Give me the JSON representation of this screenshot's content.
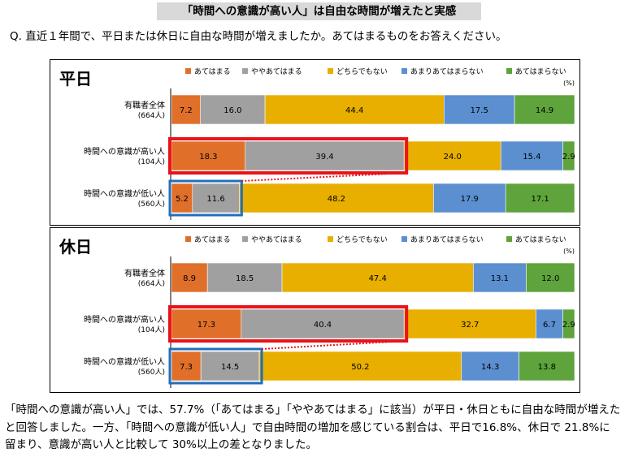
{
  "title": "「時間への意識が高い人」は自由な時間が増えたと実感",
  "question": "Q. 直近１年間で、平日または休日に自由な時間が増えましたか。あてはまるものをお答えください。",
  "footer": "「時間への意識が高い人」では、57.7%（「あてはまる」「ややあてはまる」に該当）が平日・休日ともに自由な時間が増えたと回答しました。一方、「時間への意識が低い人」で自由時間の増加を感じている割合は、平日で16.8%、休日で 21.8%に留まり、意識が高い人と比較して 30%以上の差となりました。",
  "colors": {
    "series": [
      "#e06f2a",
      "#a0a0a0",
      "#e8ae00",
      "#5b8fcf",
      "#5ea33b"
    ],
    "highlight_high": "#e8131a",
    "highlight_low": "#1f6fbd"
  },
  "chart_data": [
    {
      "type": "bar",
      "stacked": true,
      "orientation": "horizontal",
      "title": "平日",
      "unit": "(%)",
      "series_names": [
        "あてはまる",
        "ややあてはまる",
        "どちらでもない",
        "あまりあてはまらない",
        "あてはまらない"
      ],
      "categories": [
        {
          "label": "有職者全体",
          "n": "(664人)"
        },
        {
          "label": "時間への意識が高い人",
          "n": "(104人)"
        },
        {
          "label": "時間への意識が低い人",
          "n": "(560人)"
        }
      ],
      "values": [
        [
          7.2,
          16.0,
          44.4,
          17.5,
          14.9
        ],
        [
          18.3,
          39.4,
          24.0,
          15.4,
          2.9
        ],
        [
          5.2,
          11.6,
          48.2,
          17.9,
          17.1
        ]
      ],
      "legend_position": "top",
      "highlight": {
        "high_row": 1,
        "low_row": 2,
        "segments": 2
      }
    },
    {
      "type": "bar",
      "stacked": true,
      "orientation": "horizontal",
      "title": "休日",
      "unit": "(%)",
      "series_names": [
        "あてはまる",
        "ややあてはまる",
        "どちらでもない",
        "あまりあてはまらない",
        "あてはまらない"
      ],
      "categories": [
        {
          "label": "有職者全体",
          "n": "(664人)"
        },
        {
          "label": "時間への意識が高い人",
          "n": "(104人)"
        },
        {
          "label": "時間への意識が低い人",
          "n": "(560人)"
        }
      ],
      "values": [
        [
          8.9,
          18.5,
          47.4,
          13.1,
          12.0
        ],
        [
          17.3,
          40.4,
          32.7,
          6.7,
          2.9
        ],
        [
          7.3,
          14.5,
          50.2,
          14.3,
          13.8
        ]
      ],
      "legend_position": "top",
      "highlight": {
        "high_row": 1,
        "low_row": 2,
        "segments": 2
      }
    }
  ]
}
